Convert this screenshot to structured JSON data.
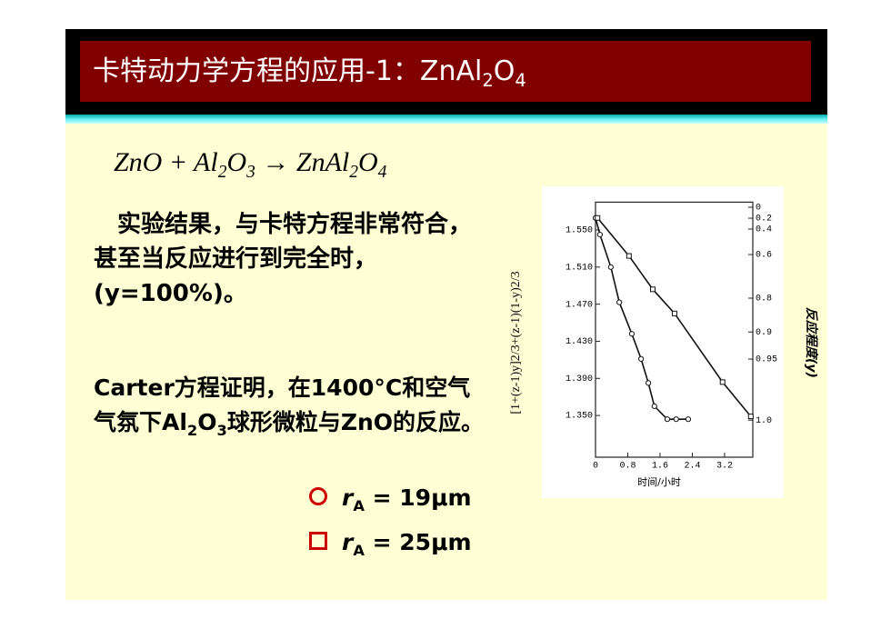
{
  "title": {
    "text": "卡特动力学方程的应用-1：ZnAl",
    "sub1": "2",
    "mid": "O",
    "sub2": "4"
  },
  "equation": {
    "a": "ZnO + Al",
    "s1": "2",
    "b": "O",
    "s2": "3",
    "c": " → ZnAl",
    "s3": "2",
    "d": "O",
    "s4": "4"
  },
  "paragraph1": "实验结果，与卡特方程非常符合，甚至当反应进行到完全时，(y=100%)。",
  "paragraph2": {
    "a": "Carter方程证明，在1400°C和空气气氛下Al",
    "s1": "2",
    "b": "O",
    "s2": "3",
    "c": "球形微粒与ZnO的反应。"
  },
  "legend": [
    {
      "r": "r",
      "sub": "A",
      "text": "= 19μm"
    },
    {
      "r": "r",
      "sub": "A",
      "text": "= 25μm"
    }
  ],
  "chart_data": {
    "type": "scatter",
    "ylabel": "[1+(z-1)y]2/3+(z-1)(1-y)2/3",
    "y2label": "反应程度(y)",
    "xlabel": "时间/小时",
    "xlim": [
      0,
      3.9
    ],
    "ylim": [
      1.305,
      1.58
    ],
    "xticks": [
      0,
      {
        "value": 0.8,
        "label": "0.8"
      },
      {
        "value": 1.6,
        "label": "1.6"
      },
      {
        "value": 2.4,
        "label": "2.4"
      },
      {
        "value": 3.2,
        "label": "3.2"
      }
    ],
    "yticks": [
      {
        "value": 1.55,
        "label": "1.550"
      },
      {
        "value": 1.51,
        "label": "1.510"
      },
      {
        "value": 1.47,
        "label": "1.470"
      },
      {
        "value": 1.43,
        "label": "1.430"
      },
      {
        "value": 1.39,
        "label": "1.390"
      },
      {
        "value": 1.35,
        "label": "1.350"
      }
    ],
    "y2ticks": [
      {
        "value": 0,
        "label": "0",
        "at": 1.5745
      },
      {
        "value": 0.2,
        "label": "0.2",
        "at": 1.5627
      },
      {
        "value": 0.4,
        "label": "0.4",
        "at": 1.551
      },
      {
        "value": 0.6,
        "label": "0.6",
        "at": 1.5235
      },
      {
        "value": 0.8,
        "label": "0.8",
        "at": 1.4765
      },
      {
        "value": 0.9,
        "label": "0.9",
        "at": 1.44
      },
      {
        "value": 0.95,
        "label": "0.95",
        "at": 1.4108
      },
      {
        "value": 1.0,
        "label": "1.0",
        "at": 1.345
      }
    ],
    "series": [
      {
        "marker": "circle",
        "x": [
          0,
          0.11,
          0.38,
          0.59,
          0.9,
          1.13,
          1.31,
          1.46,
          1.78,
          2.0,
          2.3
        ],
        "values": [
          1.563,
          1.545,
          1.51,
          1.472,
          1.438,
          1.411,
          1.385,
          1.36,
          1.346,
          1.346,
          1.346
        ]
      },
      {
        "marker": "square",
        "x": [
          0.05,
          0.83,
          1.42,
          1.96,
          3.15,
          3.85
        ],
        "values": [
          1.563,
          1.522,
          1.486,
          1.46,
          1.386,
          1.349
        ]
      }
    ]
  }
}
